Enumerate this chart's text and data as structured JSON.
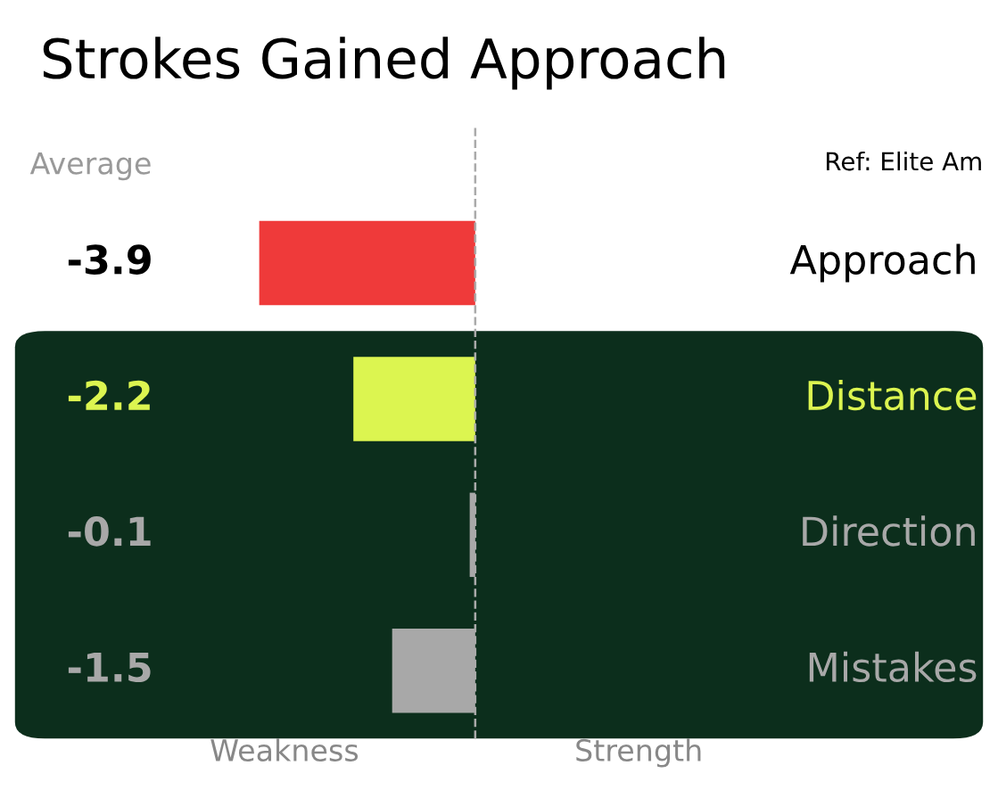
{
  "chart_data": {
    "type": "bar",
    "orientation": "horizontal",
    "title": "Strokes Gained Approach",
    "categories": [
      "Approach",
      "Distance",
      "Direction",
      "Mistakes"
    ],
    "values": [
      -3.9,
      -2.2,
      -0.1,
      -1.5
    ],
    "colors": [
      "#ef3a3a",
      "#dcf550",
      "#a8a8a8",
      "#a8a8a8"
    ],
    "data_labels": true,
    "ref_lines": [
      {
        "axis": "x",
        "value": 0,
        "color": "#aaaaaa",
        "line_style": "dashed"
      }
    ],
    "bands": [
      {
        "axis": "y",
        "from": "Distance",
        "to": "Mistakes",
        "color": "#0c2e1c"
      }
    ],
    "annotations": [
      "Average",
      "Ref: Elite Am",
      "Weakness",
      "Strength"
    ],
    "tick_labels": false
  }
}
